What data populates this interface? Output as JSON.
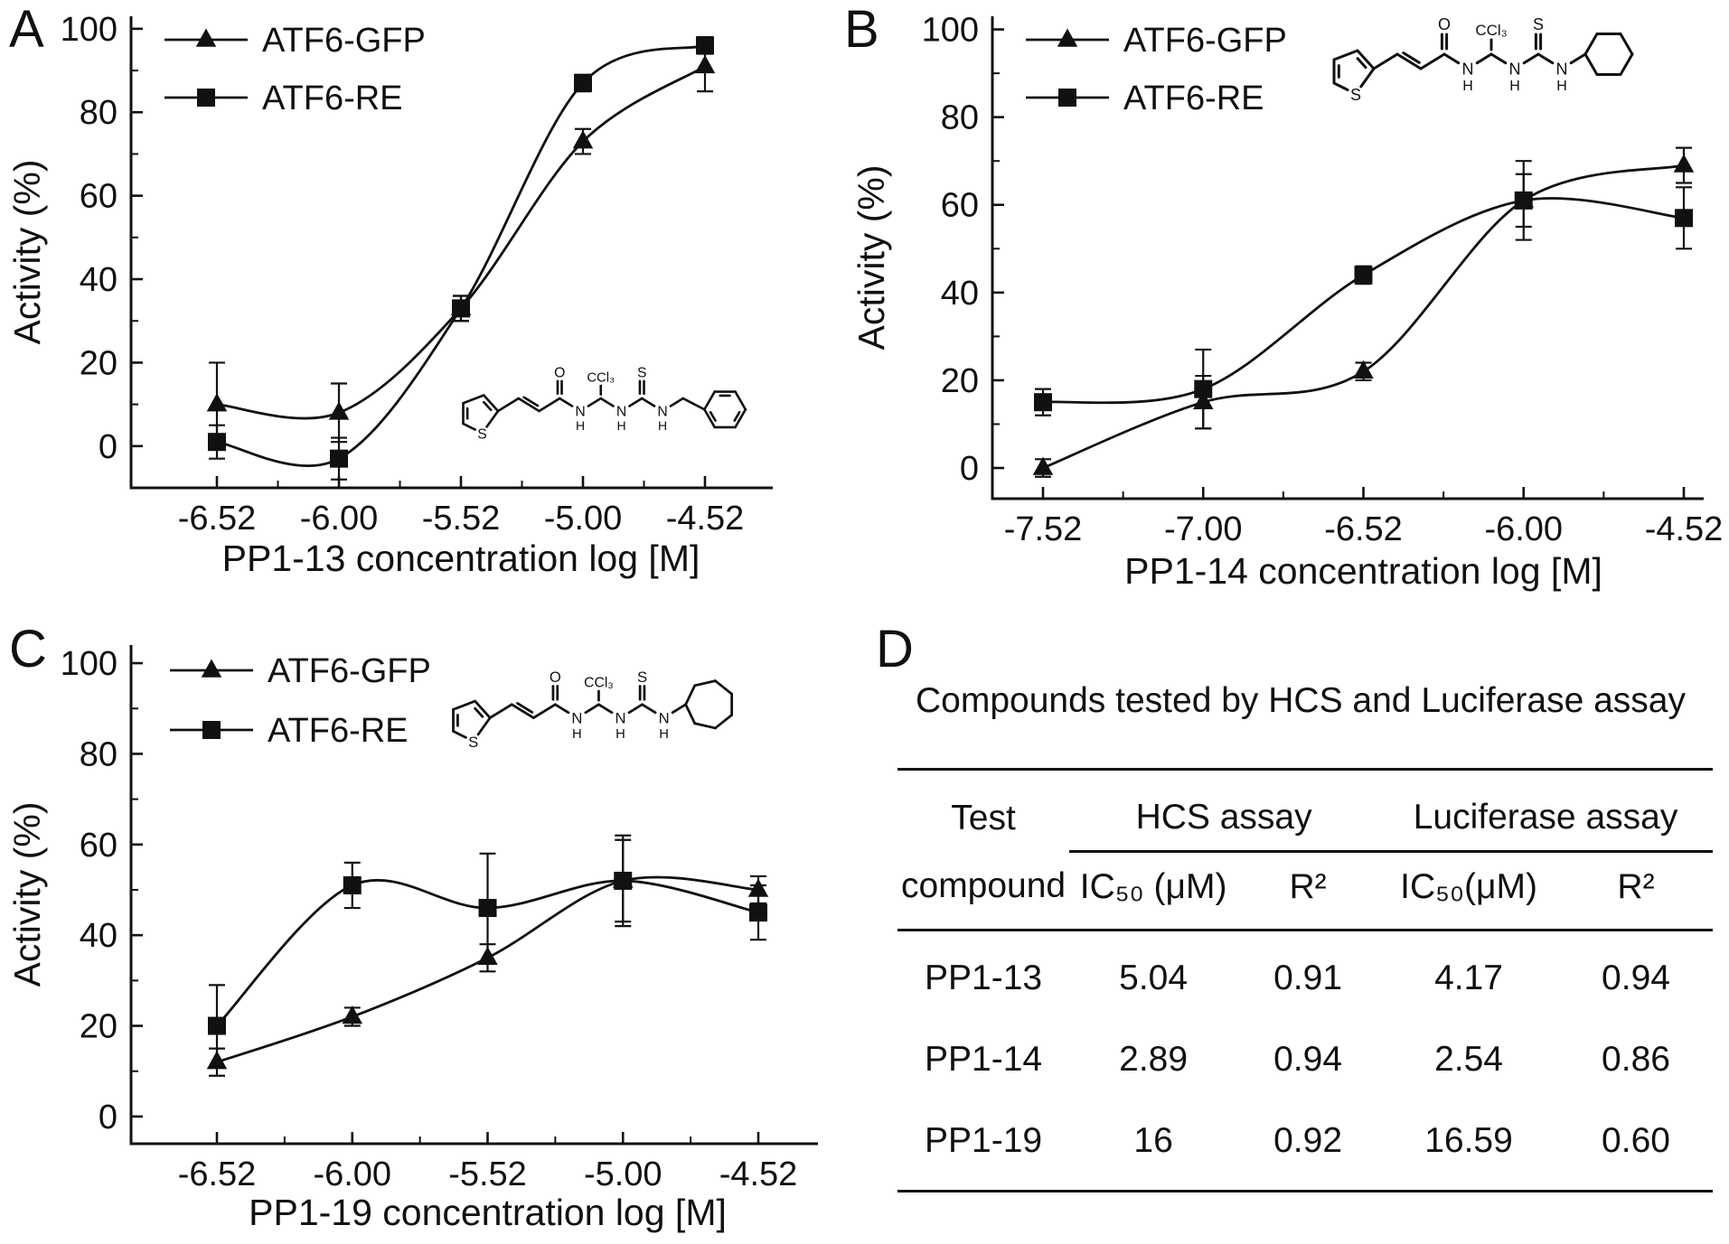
{
  "colors": {
    "foreground": "#111111",
    "background": "#ffffff"
  },
  "panels": {
    "a": {
      "label": "A"
    },
    "b": {
      "label": "B"
    },
    "c": {
      "label": "C"
    },
    "d": {
      "label": "D"
    }
  },
  "structure_labels": {
    "oxygen": "O",
    "ccl3": "CCl₃",
    "sulfur": "S",
    "nitrogen": "N",
    "hydrogen": "H",
    "thiophene_s": "S"
  },
  "chart_data": [
    {
      "type": "line",
      "panel": "A",
      "xlabel": "PP1-13 concentration log [M]",
      "ylabel": "Activity (%)",
      "x_ticklabels": [
        "-6.52",
        "-6.00",
        "-5.52",
        "-5.00",
        "-4.52"
      ],
      "y_ticks": [
        0,
        20,
        40,
        60,
        80,
        100
      ],
      "ylim": [
        -10,
        103
      ],
      "grid": false,
      "legend_position": "top-left",
      "error_bars": true,
      "series": [
        {
          "name": "ATF6-GFP",
          "marker": "triangle",
          "values": [
            10,
            8,
            33,
            73,
            91
          ],
          "errors": [
            10,
            7,
            3,
            3,
            6
          ]
        },
        {
          "name": "ATF6-RE",
          "marker": "square",
          "values": [
            1,
            -3,
            33,
            87,
            96
          ],
          "errors": [
            4,
            5,
            3,
            2,
            2
          ]
        }
      ],
      "inset_structure": "thiophene acrylamide CCl3 thiourea benzyl"
    },
    {
      "type": "line",
      "panel": "B",
      "xlabel": "PP1-14 concentration log [M]",
      "ylabel": "Activity (%)",
      "x_ticklabels": [
        "-7.52",
        "-7.00",
        "-6.52",
        "-6.00",
        "-4.52"
      ],
      "y_ticks": [
        0,
        20,
        40,
        60,
        80,
        100
      ],
      "ylim": [
        -7,
        103
      ],
      "grid": false,
      "legend_position": "top-left",
      "error_bars": true,
      "series": [
        {
          "name": "ATF6-GFP",
          "marker": "triangle",
          "values": [
            0,
            15,
            22,
            61,
            69
          ],
          "errors": [
            2,
            6,
            2,
            9,
            4
          ]
        },
        {
          "name": "ATF6-RE",
          "marker": "square",
          "values": [
            15,
            18,
            44,
            61,
            57
          ],
          "errors": [
            3,
            9,
            2,
            6,
            7
          ]
        }
      ],
      "inset_structure": "thiophene acrylamide CCl3 thiourea cyclohexyl"
    },
    {
      "type": "line",
      "panel": "C",
      "xlabel": "PP1-19 concentration log [M]",
      "ylabel": "Activity (%)",
      "x_ticklabels": [
        "-6.52",
        "-6.00",
        "-5.52",
        "-5.00",
        "-4.52"
      ],
      "y_ticks": [
        0,
        20,
        40,
        60,
        80,
        100
      ],
      "ylim": [
        -6,
        104
      ],
      "grid": false,
      "legend_position": "top-left",
      "error_bars": true,
      "series": [
        {
          "name": "ATF6-GFP",
          "marker": "triangle",
          "values": [
            12,
            22,
            35,
            52,
            50
          ],
          "errors": [
            3,
            2,
            3,
            9,
            3
          ]
        },
        {
          "name": "ATF6-RE",
          "marker": "square",
          "values": [
            20,
            51,
            46,
            52,
            45
          ],
          "errors": [
            9,
            5,
            12,
            10,
            6
          ]
        }
      ],
      "inset_structure": "thiophene acrylamide CCl3 thiourea cycloheptyl"
    }
  ],
  "table": {
    "title": "Compounds tested by HCS and Luciferase assay",
    "group_headers": {
      "test": "Test",
      "hcs": "HCS assay",
      "luciferase": "Luciferase assay"
    },
    "sub_headers": {
      "compound": "compound",
      "hcs_ic50": "IC₅₀ (μM)",
      "hcs_r2": "R²",
      "luc_ic50": "IC₅₀(μM)",
      "luc_r2": "R²"
    },
    "rows": [
      {
        "compound": "PP1-13",
        "hcs_ic50": "5.04",
        "hcs_r2": "0.91",
        "luc_ic50": "4.17",
        "luc_r2": "0.94"
      },
      {
        "compound": "PP1-14",
        "hcs_ic50": "2.89",
        "hcs_r2": "0.94",
        "luc_ic50": "2.54",
        "luc_r2": "0.86"
      },
      {
        "compound": "PP1-19",
        "hcs_ic50": "16",
        "hcs_r2": "0.92",
        "luc_ic50": "16.59",
        "luc_r2": "0.60"
      }
    ]
  }
}
